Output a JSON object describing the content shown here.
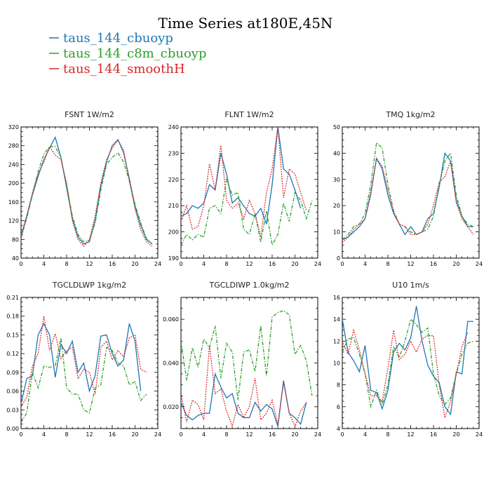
{
  "figure": {
    "title": "Time Series at180E,45N",
    "legend": [
      {
        "label": "taus_144_cbuoyp",
        "color": "#1f77b4",
        "dash": "solid"
      },
      {
        "label": "taus_144_c8m_cbuoyp",
        "color": "#2ca02c",
        "dash": "dashdot"
      },
      {
        "label": "taus_144_smoothH",
        "color": "#d62728",
        "dash": "dotted"
      }
    ]
  },
  "chart_data": [
    {
      "type": "line",
      "title": "FSNT   1W/m2",
      "xlim": [
        0,
        24
      ],
      "ylim": [
        40,
        320
      ],
      "xticks": [
        0,
        4,
        8,
        12,
        16,
        20,
        24
      ],
      "yticks": [
        40,
        80,
        120,
        160,
        200,
        240,
        280,
        320
      ],
      "series": [
        {
          "name": "taus_144_cbuoyp",
          "color": "#1f77b4",
          "dash": "solid",
          "values": [
            88,
            130,
            175,
            215,
            250,
            275,
            298,
            255,
            190,
            125,
            85,
            70,
            75,
            120,
            195,
            245,
            280,
            293,
            265,
            210,
            150,
            110,
            80,
            70
          ]
        },
        {
          "name": "taus_144_c8m_cbuoyp",
          "color": "#2ca02c",
          "dash": "dashdot",
          "values": [
            85,
            125,
            175,
            225,
            262,
            278,
            278,
            255,
            195,
            130,
            90,
            75,
            78,
            115,
            185,
            240,
            255,
            265,
            245,
            205,
            155,
            115,
            82,
            70
          ]
        },
        {
          "name": "taus_144_smoothH",
          "color": "#d62728",
          "dash": "dotted",
          "values": [
            80,
            130,
            180,
            220,
            245,
            278,
            260,
            250,
            200,
            120,
            80,
            65,
            80,
            130,
            200,
            250,
            275,
            292,
            270,
            205,
            145,
            100,
            75,
            65
          ]
        }
      ]
    },
    {
      "type": "line",
      "title": "FLNT   1W/m2",
      "xlim": [
        0,
        24
      ],
      "ylim": [
        190,
        240
      ],
      "xticks": [
        0,
        4,
        8,
        12,
        16,
        20,
        24
      ],
      "yticks": [
        190,
        200,
        210,
        220,
        230,
        240
      ],
      "series": [
        {
          "name": "taus_144_cbuoyp",
          "color": "#1f77b4",
          "dash": "solid",
          "values": [
            206,
            207,
            210,
            209,
            211,
            218,
            216,
            230,
            222,
            211,
            213,
            210,
            207,
            206,
            209,
            203,
            218,
            240,
            224,
            222,
            216,
            209
          ]
        },
        {
          "name": "taus_144_c8m_cbuoyp",
          "color": "#2ca02c",
          "dash": "dashdot",
          "values": [
            195,
            199,
            197,
            199,
            198,
            209,
            210,
            207,
            220,
            214,
            215,
            201,
            199,
            207,
            196,
            208,
            195,
            199,
            211,
            204,
            215,
            212,
            205,
            212
          ]
        },
        {
          "name": "taus_144_smoothH",
          "color": "#d62728",
          "dash": "dotted",
          "values": [
            204,
            210,
            201,
            202,
            210,
            226,
            216,
            233,
            212,
            209,
            211,
            205,
            212,
            207,
            198,
            215,
            224,
            240,
            213,
            224,
            222,
            215,
            208
          ]
        }
      ]
    },
    {
      "type": "line",
      "title": "TMQ   1kg/m2",
      "xlim": [
        0,
        24
      ],
      "ylim": [
        0,
        50
      ],
      "xticks": [
        0,
        4,
        8,
        12,
        16,
        20,
        24
      ],
      "yticks": [
        0,
        10,
        20,
        30,
        40,
        50
      ],
      "series": [
        {
          "name": "taus_144_cbuoyp",
          "color": "#1f77b4",
          "dash": "solid",
          "values": [
            7,
            8,
            10,
            12,
            15,
            25,
            38,
            34,
            24,
            17,
            13,
            9,
            12,
            9,
            10,
            15,
            17,
            27,
            40,
            37,
            22,
            16,
            12,
            12
          ]
        },
        {
          "name": "taus_144_c8m_cbuoyp",
          "color": "#2ca02c",
          "dash": "dashdot",
          "values": [
            7,
            9,
            12,
            13,
            17,
            28,
            44,
            42,
            28,
            18,
            13,
            12,
            10,
            9,
            10,
            11,
            16,
            28,
            37,
            40,
            24,
            16,
            13,
            12
          ]
        },
        {
          "name": "taus_144_smoothH",
          "color": "#d62728",
          "dash": "dotted",
          "values": [
            6,
            8,
            11,
            13,
            15,
            24,
            38,
            35,
            26,
            18,
            13,
            12,
            9,
            9,
            10,
            13,
            20,
            29,
            31,
            37,
            21,
            15,
            12,
            9
          ]
        }
      ]
    },
    {
      "type": "line",
      "title": "TGCLDLWP   1kg/m2",
      "xlim": [
        0,
        24
      ],
      "ylim": [
        0,
        0.21
      ],
      "xticks": [
        0,
        4,
        8,
        12,
        16,
        20,
        24
      ],
      "yticks": [
        0.0,
        0.03,
        0.06,
        0.09,
        0.12,
        0.15,
        0.18,
        0.21
      ],
      "series": [
        {
          "name": "taus_144_cbuoyp",
          "color": "#1f77b4",
          "dash": "solid",
          "values": [
            0.04,
            0.08,
            0.085,
            0.15,
            0.168,
            0.15,
            0.082,
            0.135,
            0.12,
            0.14,
            0.09,
            0.105,
            0.06,
            0.085,
            0.148,
            0.15,
            0.12,
            0.1,
            0.11,
            0.168,
            0.14,
            0.06
          ]
        },
        {
          "name": "taus_144_c8m_cbuoyp",
          "color": "#2ca02c",
          "dash": "dashdot",
          "values": [
            0.01,
            0.025,
            0.09,
            0.065,
            0.1,
            0.098,
            0.1,
            0.145,
            0.065,
            0.055,
            0.055,
            0.03,
            0.025,
            0.065,
            0.07,
            0.13,
            0.125,
            0.105,
            0.1,
            0.07,
            0.075,
            0.045,
            0.055
          ]
        },
        {
          "name": "taus_144_smoothH",
          "color": "#d62728",
          "dash": "dotted",
          "values": [
            0.035,
            0.05,
            0.1,
            0.12,
            0.18,
            0.125,
            0.152,
            0.112,
            0.125,
            0.13,
            0.08,
            0.095,
            0.09,
            0.055,
            0.13,
            0.14,
            0.11,
            0.125,
            0.115,
            0.145,
            0.15,
            0.095,
            0.09
          ]
        }
      ]
    },
    {
      "type": "line",
      "title": "TGCLDIWP   1.0kg/m2",
      "xlim": [
        0,
        24
      ],
      "ylim": [
        0.01,
        0.07
      ],
      "xticks": [
        0,
        4,
        8,
        12,
        16,
        20,
        24
      ],
      "yticks": [
        0.02,
        0.04,
        0.06
      ],
      "ytick_labels": [
        "0.020",
        "0.040",
        "0.060"
      ],
      "series": [
        {
          "name": "taus_144_cbuoyp",
          "color": "#1f77b4",
          "dash": "solid",
          "values": [
            0.022,
            0.016,
            0.014,
            0.016,
            0.017,
            0.017,
            0.035,
            0.029,
            0.024,
            0.026,
            0.017,
            0.015,
            0.015,
            0.022,
            0.018,
            0.021,
            0.019,
            0.011,
            0.032,
            0.017,
            0.015,
            0.012,
            0.022
          ]
        },
        {
          "name": "taus_144_c8m_cbuoyp",
          "color": "#2ca02c",
          "dash": "dashdot",
          "values": [
            0.05,
            0.032,
            0.047,
            0.038,
            0.051,
            0.047,
            0.057,
            0.033,
            0.049,
            0.045,
            0.023,
            0.045,
            0.046,
            0.036,
            0.057,
            0.034,
            0.061,
            0.063,
            0.064,
            0.062,
            0.044,
            0.048,
            0.041,
            0.025
          ]
        },
        {
          "name": "taus_144_smoothH",
          "color": "#d62728",
          "dash": "dotted",
          "values": [
            0.026,
            0.013,
            0.023,
            0.021,
            0.014,
            0.048,
            0.026,
            0.028,
            0.018,
            0.011,
            0.021,
            0.015,
            0.02,
            0.033,
            0.014,
            0.017,
            0.023,
            0.012,
            0.031,
            0.017,
            0.011,
            0.018,
            0.022
          ]
        }
      ]
    },
    {
      "type": "line",
      "title": "U10   1m/s",
      "xlim": [
        0,
        24
      ],
      "ylim": [
        4,
        16
      ],
      "xticks": [
        0,
        4,
        8,
        12,
        16,
        20,
        24
      ],
      "yticks": [
        4,
        6,
        8,
        10,
        12,
        14,
        16
      ],
      "series": [
        {
          "name": "taus_144_cbuoyp",
          "color": "#1f77b4",
          "dash": "solid",
          "values": [
            14.0,
            11.0,
            10.2,
            9.2,
            11.6,
            7.5,
            7.3,
            5.8,
            7.5,
            11.0,
            11.8,
            11.2,
            12.3,
            15.2,
            12.0,
            9.8,
            8.8,
            8.2,
            6.0,
            5.3,
            9.2,
            9.0,
            13.8,
            13.8
          ]
        },
        {
          "name": "taus_144_c8m_cbuoyp",
          "color": "#2ca02c",
          "dash": "dashdot",
          "values": [
            11.0,
            12.2,
            12.3,
            10.8,
            9.0,
            6.0,
            7.5,
            6.2,
            8.0,
            11.5,
            10.5,
            12.0,
            14.0,
            13.5,
            12.8,
            13.2,
            9.0,
            7.0,
            6.2,
            6.8,
            9.0,
            10.8,
            11.8,
            12.0
          ]
        },
        {
          "name": "taus_144_smoothH",
          "color": "#d62728",
          "dash": "dotted",
          "values": [
            12.0,
            10.8,
            13.0,
            11.2,
            9.0,
            7.0,
            7.0,
            6.5,
            9.5,
            13.0,
            10.3,
            10.8,
            12.0,
            11.0,
            12.2,
            12.5,
            12.5,
            8.0,
            5.0,
            6.5,
            9.0,
            11.5,
            12.8
          ]
        }
      ]
    }
  ]
}
